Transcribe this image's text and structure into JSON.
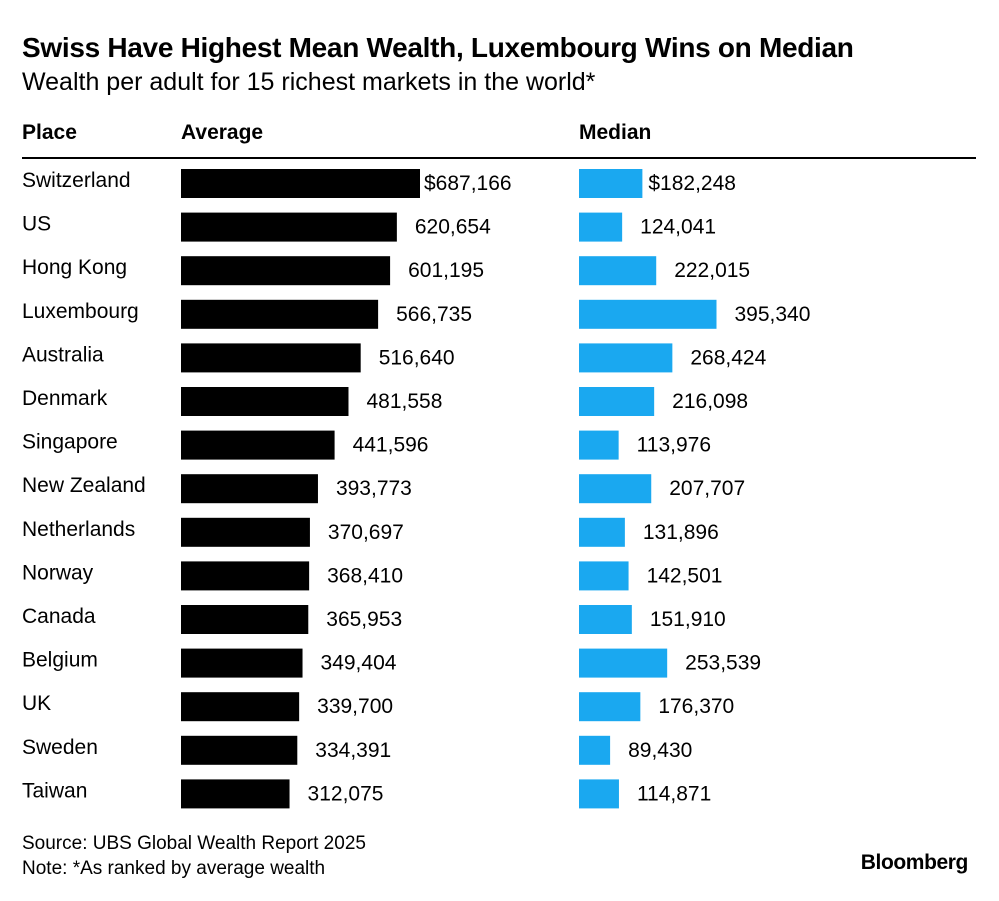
{
  "title": "Swiss Have Highest Mean Wealth, Luxembourg Wins on Median",
  "subtitle": "Wealth per adult for 15 richest markets in the world*",
  "source": "Source: UBS Global Wealth Report 2025",
  "note": "Note: *As ranked by average wealth",
  "brand": "Bloomberg",
  "colors": {
    "average_bar": "#000000",
    "median_bar": "#1aa8f0",
    "text": "#000000"
  },
  "chart_data": {
    "type": "bar",
    "orientation": "horizontal",
    "columns": {
      "place": "Place",
      "average": "Average",
      "median": "Median"
    },
    "categories": [
      "Switzerland",
      "US",
      "Hong Kong",
      "Luxembourg",
      "Australia",
      "Denmark",
      "Singapore",
      "New Zealand",
      "Netherlands",
      "Norway",
      "Canada",
      "Belgium",
      "UK",
      "Sweden",
      "Taiwan"
    ],
    "series": [
      {
        "name": "Average",
        "values": [
          687166,
          620654,
          601195,
          566735,
          516640,
          481558,
          441596,
          393773,
          370697,
          368410,
          365953,
          349404,
          339700,
          334391,
          312075
        ],
        "labels": [
          "$687,166",
          "620,654",
          "601,195",
          "566,735",
          "516,640",
          "481,558",
          "441,596",
          "393,773",
          "370,697",
          "368,410",
          "365,953",
          "349,404",
          "339,700",
          "334,391",
          "312,075"
        ]
      },
      {
        "name": "Median",
        "values": [
          182248,
          124041,
          222015,
          395340,
          268424,
          216098,
          113976,
          207707,
          131896,
          142501,
          151910,
          253539,
          176370,
          89430,
          114871
        ],
        "labels": [
          "$182,248",
          "124,041",
          "222,015",
          "395,340",
          "268,424",
          "216,098",
          "113,976",
          "207,707",
          "131,896",
          "142,501",
          "151,910",
          "253,539",
          "176,370",
          "89,430",
          "114,871"
        ]
      }
    ],
    "xlim": [
      0,
      687166
    ]
  }
}
